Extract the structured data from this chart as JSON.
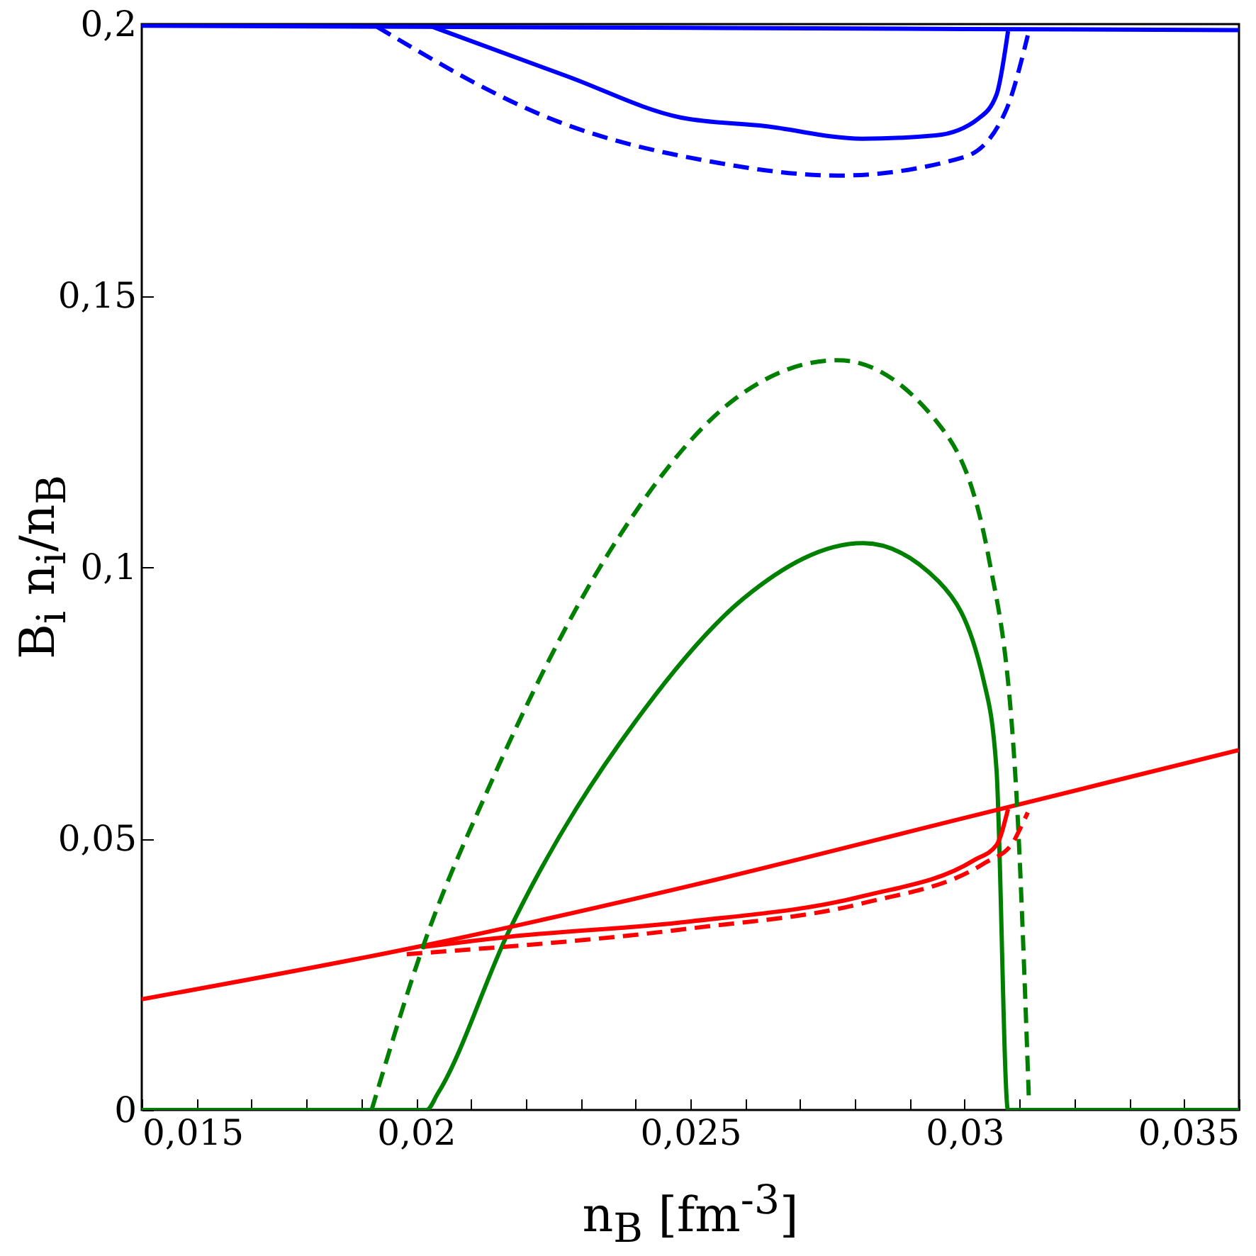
{
  "chart_data": {
    "type": "line",
    "xlabel": "n$_{B}$ [fm$^{-3}$]",
    "ylabel": "B$_{i}$ n$_{i}$/n$_{B}$",
    "xlim": [
      0.015,
      0.035
    ],
    "ylim": [
      0,
      0.2
    ],
    "xticks": [
      {
        "value": 0.015,
        "label": "0,015"
      },
      {
        "value": 0.016,
        "label": null
      },
      {
        "value": 0.017,
        "label": null
      },
      {
        "value": 0.018,
        "label": null
      },
      {
        "value": 0.019,
        "label": null
      },
      {
        "value": 0.02,
        "label": "0,02"
      },
      {
        "value": 0.021,
        "label": null
      },
      {
        "value": 0.022,
        "label": null
      },
      {
        "value": 0.023,
        "label": null
      },
      {
        "value": 0.024,
        "label": null
      },
      {
        "value": 0.025,
        "label": "0,025"
      },
      {
        "value": 0.026,
        "label": null
      },
      {
        "value": 0.027,
        "label": null
      },
      {
        "value": 0.028,
        "label": null
      },
      {
        "value": 0.029,
        "label": null
      },
      {
        "value": 0.03,
        "label": "0,03"
      },
      {
        "value": 0.031,
        "label": null
      },
      {
        "value": 0.032,
        "label": null
      },
      {
        "value": 0.033,
        "label": null
      },
      {
        "value": 0.034,
        "label": null
      },
      {
        "value": 0.035,
        "label": "0,035"
      }
    ],
    "yticks": [
      0,
      {
        "value": 0.05,
        "label": "0,05"
      },
      {
        "value": 0.1,
        "label": "0,1"
      },
      {
        "value": 0.15,
        "label": "0,15"
      },
      {
        "value": 0.2,
        "label": "0,2"
      }
    ],
    "grid": false,
    "legend": false,
    "marker": "none",
    "series": [
      {
        "color": "#0000ff",
        "line_style": "solid",
        "x": [
          0.015,
          0.025,
          0.035
        ],
        "values": [
          0.1997,
          0.1993,
          0.1989
        ]
      },
      {
        "color": "#0000ff",
        "line_style": "solid",
        "x": [
          0.0203,
          0.02275,
          0.02482,
          0.02637,
          0.02813,
          0.02947,
          0.03025,
          0.03058,
          0.03079
        ],
        "values": [
          0.1995,
          0.1904,
          0.1828,
          0.1812,
          0.1789,
          0.1795,
          0.1826,
          0.187,
          0.1987
        ]
      },
      {
        "color": "#0000ff",
        "line_style": "dashed",
        "x": [
          0.01929,
          0.0226,
          0.02536,
          0.02769,
          0.02999,
          0.03074,
          0.03115
        ],
        "values": [
          0.1995,
          0.182,
          0.1747,
          0.1721,
          0.1755,
          0.1838,
          0.1979
        ]
      },
      {
        "color": "#008000",
        "line_style": "solid",
        "x": [
          0.015,
          0.02019,
          0.0204,
          0.02169,
          0.02417,
          0.02598,
          0.02815,
          0.02952,
          0.03035,
          0.03058,
          0.03079,
          0.035
        ],
        "values": [
          0,
          0,
          0.0031,
          0.0329,
          0.0739,
          0.0943,
          0.1044,
          0.0974,
          0.0789,
          0.0627,
          0,
          0
        ]
      },
      {
        "color": "#008000",
        "line_style": "dashed",
        "x": [
          0.01919,
          0.02019,
          0.0213,
          0.02353,
          0.02583,
          0.02769,
          0.02952,
          0.03045,
          0.03094,
          0.03117
        ],
        "values": [
          0,
          0.0319,
          0.0588,
          0.1029,
          0.1311,
          0.1381,
          0.1264,
          0.1011,
          0.0588,
          0.0021
        ]
      },
      {
        "color": "#ff0000",
        "line_style": "solid",
        "x": [
          0.015,
          0.02,
          0.025,
          0.03,
          0.035
        ],
        "values": [
          0.0204,
          0.03,
          0.0413,
          0.0538,
          0.0663
        ]
      },
      {
        "color": "#ff0000",
        "line_style": "solid",
        "x": [
          0.0201,
          0.02169,
          0.02497,
          0.02815,
          0.03017,
          0.03058,
          0.03079
        ],
        "values": [
          0.03,
          0.0319,
          0.0347,
          0.0394,
          0.046,
          0.0488,
          0.0554
        ]
      },
      {
        "color": "#ff0000",
        "line_style": "dashed",
        "x": [
          0.01983,
          0.02497,
          0.02815,
          0.03035,
          0.03087,
          0.03099,
          0.03115
        ],
        "values": [
          0.0287,
          0.0334,
          0.0381,
          0.0454,
          0.0491,
          0.0514,
          0.0548
        ]
      }
    ]
  }
}
